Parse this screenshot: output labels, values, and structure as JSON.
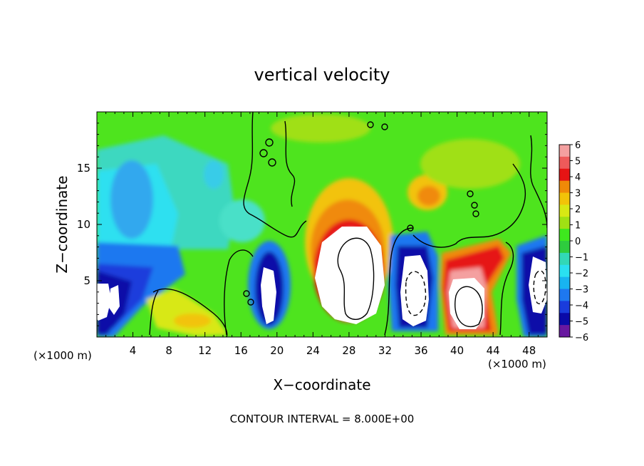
{
  "chart_data": {
    "type": "heatmap",
    "title": "vertical velocity",
    "xlabel": "X−coordinate",
    "ylabel": "Z−coordinate",
    "x_unit_left": "(×1000 m)",
    "x_unit_right": "(×1000 m)",
    "footer": "CONTOUR INTERVAL = 8.000E+00",
    "xlim": [
      0,
      50
    ],
    "ylim": [
      0,
      20
    ],
    "x_ticks": [
      4,
      8,
      12,
      16,
      20,
      24,
      28,
      32,
      36,
      40,
      44,
      48
    ],
    "y_ticks": [
      5,
      10,
      15
    ],
    "colorbar": {
      "min": -6,
      "max": 6,
      "tick_labels": [
        "6",
        "5",
        "4",
        "3",
        "2",
        "1",
        "0",
        "−1",
        "−2",
        "−3",
        "−4",
        "−5",
        "−6"
      ],
      "colors": [
        "#f4a0a0",
        "#ee5a5a",
        "#e61414",
        "#f08a08",
        "#f2c308",
        "#d8e814",
        "#a0e014",
        "#3ee81e",
        "#2ecc3e",
        "#32d8b6",
        "#2ae0f0",
        "#18b4f0",
        "#1e78f0",
        "#1a3cdc",
        "#0a0aa8",
        "#6818a0"
      ]
    },
    "cells": [
      {
        "x": 2,
        "z": 3,
        "w": -6.5
      },
      {
        "x": 5,
        "z": 3,
        "w": -5.5
      },
      {
        "x": 5,
        "z": 14,
        "w": -2.5
      },
      {
        "x": 10,
        "z": 2,
        "w": 2.0
      },
      {
        "x": 19,
        "z": 3.5,
        "w": -6.5
      },
      {
        "x": 28,
        "z": 5,
        "w": 7.5
      },
      {
        "x": 35,
        "z": 4.5,
        "w": -6.5
      },
      {
        "x": 40.5,
        "z": 4,
        "w": 7.0
      },
      {
        "x": 37,
        "z": 12.5,
        "w": 3.0
      },
      {
        "x": 48.5,
        "z": 4,
        "w": -6.5
      }
    ]
  }
}
